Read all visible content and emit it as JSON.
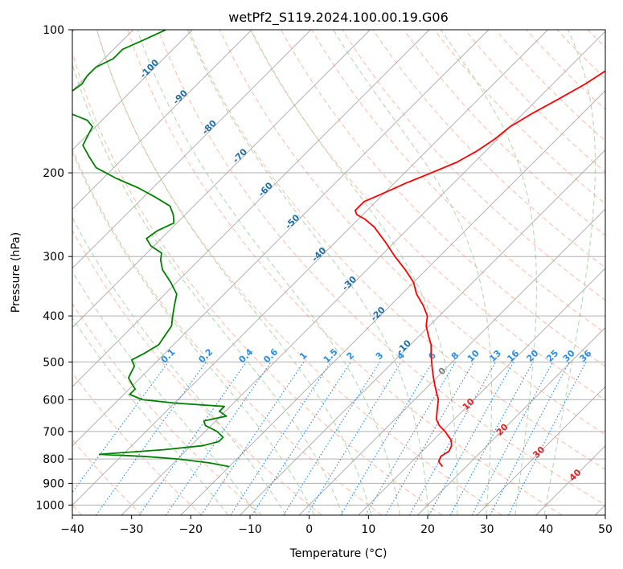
{
  "chart_data": {
    "type": "skew-t",
    "title": "wetPf2_S119.2024.100.00.19.G06",
    "xlabel": "Temperature (°C)",
    "ylabel": "Pressure (hPa)",
    "xlim": [
      -40,
      50
    ],
    "ylim": [
      1050,
      100
    ],
    "y_scale": "log",
    "grid": true,
    "x_ticks": [
      "−40",
      "−30",
      "−20",
      "−10",
      "0",
      "10",
      "20",
      "30",
      "40",
      "50"
    ],
    "x_tick_values": [
      -40,
      -30,
      -20,
      -10,
      0,
      10,
      20,
      30,
      40,
      50
    ],
    "y_ticks": [
      "100",
      "200",
      "300",
      "400",
      "500",
      "600",
      "700",
      "800",
      "900",
      "1000"
    ],
    "y_tick_values": [
      100,
      200,
      300,
      400,
      500,
      600,
      700,
      800,
      900,
      1000
    ],
    "colors": {
      "temperature": "#ff0000",
      "dewpoint": "#008000",
      "dry_adiabat": "#ff8c69",
      "moist_adiabat": "#90c890",
      "mixing_ratio": "#1e88e5",
      "isotherm": "#808080",
      "isotherm_label": "#1f6fa8",
      "mixing_label": "#2a8fe0",
      "positive_label": "#d62728",
      "zero_label": "#808080"
    },
    "series": [
      {
        "key": "temperature",
        "pressure": [
          830,
          810,
          790,
          770,
          750,
          730,
          700,
          680,
          660,
          640,
          620,
          600,
          580,
          560,
          540,
          520,
          500,
          480,
          460,
          440,
          420,
          400,
          380,
          360,
          340,
          320,
          300,
          280,
          260,
          250,
          245,
          240,
          230,
          220,
          210,
          200,
          190,
          180,
          170,
          160,
          150,
          140,
          130,
          120,
          110,
          100
        ],
        "temperature": [
          16,
          14.5,
          14,
          14.5,
          14,
          13,
          10.5,
          8.5,
          7,
          6,
          5,
          4,
          2.5,
          1,
          -0.5,
          -2,
          -3.5,
          -5,
          -6.5,
          -8.5,
          -10.5,
          -12,
          -14.5,
          -17.5,
          -20,
          -23.5,
          -27.5,
          -31.5,
          -36,
          -39,
          -41,
          -42,
          -42,
          -40,
          -38,
          -35.5,
          -33,
          -31.5,
          -30.5,
          -30,
          -28.5,
          -26.5,
          -24.5,
          -23,
          -22.5,
          -22.5
        ]
      },
      {
        "key": "dewpoint",
        "pressure": [
          830,
          815,
          800,
          790,
          782,
          775,
          765,
          750,
          735,
          720,
          700,
          680,
          665,
          650,
          635,
          620,
          610,
          600,
          585,
          570,
          555,
          540,
          525,
          510,
          495,
          480,
          460,
          440,
          420,
          400,
          380,
          360,
          340,
          320,
          305,
          295,
          285,
          275,
          265,
          255,
          245,
          235,
          225,
          215,
          205,
          195,
          185,
          175,
          165,
          160,
          155,
          150,
          145,
          140,
          135,
          130,
          125,
          120,
          115,
          110,
          105,
          100
        ],
        "dewpoint": [
          -20,
          -24,
          -30,
          -36,
          -44,
          -40,
          -34,
          -28,
          -26,
          -26,
          -28,
          -31,
          -32,
          -29,
          -31,
          -31,
          -40,
          -46,
          -49,
          -49,
          -50.5,
          -52,
          -52.5,
          -53,
          -54.5,
          -53.5,
          -52.5,
          -53,
          -53.5,
          -55,
          -56.5,
          -58,
          -61,
          -64.5,
          -66.5,
          -67.5,
          -70.5,
          -72.5,
          -72,
          -70.5,
          -72,
          -74,
          -78,
          -82.5,
          -88,
          -93,
          -96,
          -99,
          -100,
          -100.5,
          -102.5,
          -106.5,
          -109.5,
          -111,
          -110,
          -109.5,
          -110,
          -110,
          -108.5,
          -108.5,
          -106.5,
          -104.5
        ]
      }
    ],
    "isotherm_labels": [
      "-100",
      "-90",
      "-80",
      "-70",
      "-60",
      "-50",
      "-40",
      "-30",
      "-20",
      "-10"
    ],
    "isotherm_label_values": [
      -100,
      -90,
      -80,
      -70,
      -60,
      -50,
      -40,
      -30,
      -20,
      -10
    ],
    "mixing_ratio_labels": [
      "0.1",
      "0.2",
      "0.4",
      "0.6",
      "1",
      "1.5",
      "2",
      "3",
      "4",
      "6",
      "8",
      "10",
      "13",
      "16",
      "20",
      "25",
      "30",
      "36"
    ],
    "mixing_ratio_values": [
      0.1,
      0.2,
      0.4,
      0.6,
      1,
      1.5,
      2,
      3,
      4,
      6,
      8,
      10,
      13,
      16,
      20,
      25,
      30,
      36
    ],
    "warm_isotherm_labels": [
      "0",
      "10",
      "20",
      "30",
      "40"
    ],
    "warm_isotherm_values": [
      0,
      10,
      20,
      30,
      40
    ]
  }
}
